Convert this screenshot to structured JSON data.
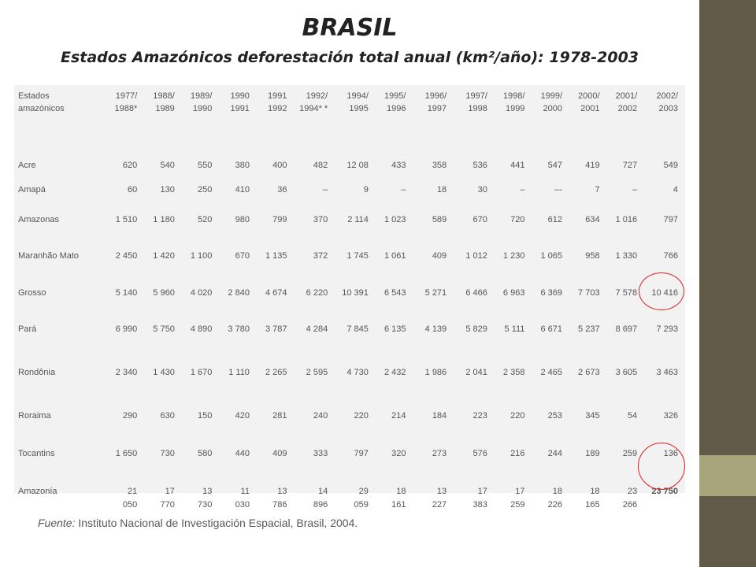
{
  "title": "BRASIL",
  "subtitle": "Estados Amazónicos deforestación total anual (km²/año): 1978-2003",
  "table": {
    "headers": [
      "Estados amazónicos",
      "1977/ 1988*",
      "1988/ 1989",
      "1989/ 1990",
      "1990 1991",
      "1991 1992",
      "1992/ 1994* *",
      "1994/ 1995",
      "1995/ 1996",
      "1996/ 1997",
      "1997/ 1998",
      "1998/ 1999",
      "1999/ 2000",
      "2000/ 2001",
      "2001/ 2002",
      "2002/ 2003"
    ],
    "rows": [
      {
        "state": "Acre",
        "values": [
          "620",
          "540",
          "550",
          "380",
          "400",
          "482",
          "12 08",
          "433",
          "358",
          "536",
          "441",
          "547",
          "419",
          "727",
          "549"
        ]
      },
      {
        "state": "Amapá",
        "values": [
          "60",
          "130",
          "250",
          "410",
          "36",
          "–",
          "9",
          "–",
          "18",
          "30",
          "–",
          "–-",
          "7",
          "–",
          "4"
        ]
      },
      {
        "state": "Amazonas",
        "values": [
          "1 510",
          "1 180",
          "520",
          "980",
          "799",
          "370",
          "2 114",
          "1 023",
          "589",
          "670",
          "720",
          "612",
          "634",
          "1 016",
          "797"
        ]
      },
      {
        "state": "Maranhão Mato",
        "values": [
          "2 450",
          "1 420",
          "1 100",
          "670",
          "1 135",
          "372",
          "1 745",
          "1 061",
          "409",
          "1 012",
          "1 230",
          "1 065",
          "958",
          "1 330",
          "766"
        ]
      },
      {
        "state": "Grosso",
        "values": [
          "5 140",
          "5 960",
          "4 020",
          "2 840",
          "4 674",
          "6 220",
          "10 391",
          "6 543",
          "5 271",
          "6 466",
          "6 963",
          "6 369",
          "7 703",
          "7 578",
          "10 416"
        ]
      },
      {
        "state": "Pará",
        "values": [
          "6 990",
          "5 750",
          "4 890",
          "3 780",
          "3 787",
          "4 284",
          "7 845",
          "6 135",
          "4 139",
          "5 829",
          "5 111",
          "6 671",
          "5 237",
          "8 697",
          "7 293"
        ]
      },
      {
        "state": "Rondônia",
        "values": [
          "2 340",
          "1 430",
          "1 670",
          "1 110",
          "2 265",
          "2 595",
          "4 730",
          "2 432",
          "1 986",
          "2 041",
          "2 358",
          "2 465",
          "2 673",
          "3 605",
          "3 463"
        ]
      },
      {
        "state": "Roraima",
        "values": [
          "290",
          "630",
          "150",
          "420",
          "281",
          "240",
          "220",
          "214",
          "184",
          "223",
          "220",
          "253",
          "345",
          "54",
          "326"
        ]
      },
      {
        "state": "Tocantins",
        "values": [
          "1 650",
          "730",
          "580",
          "440",
          "409",
          "333",
          "797",
          "320",
          "273",
          "576",
          "216",
          "244",
          "189",
          "259",
          "136"
        ]
      },
      {
        "state": "Amazonía",
        "values": [
          "21 050",
          "17 770",
          "13 730",
          "11 030",
          "13 786",
          "14 896",
          "29 059",
          "18 161",
          "13 227",
          "17 383",
          "17 259",
          "18 226",
          "18 165",
          "23 266",
          "23 750"
        ]
      }
    ]
  },
  "source": {
    "label": "Fuente:",
    "text": " Instituto Nacional de Investigación Espacial, Brasil, 2004."
  },
  "colors": {
    "sidebar": "#625a49",
    "sidebar_band": "#a8a47c",
    "highlight_circle": "#e02020",
    "table_background": "#f2f2f2"
  }
}
